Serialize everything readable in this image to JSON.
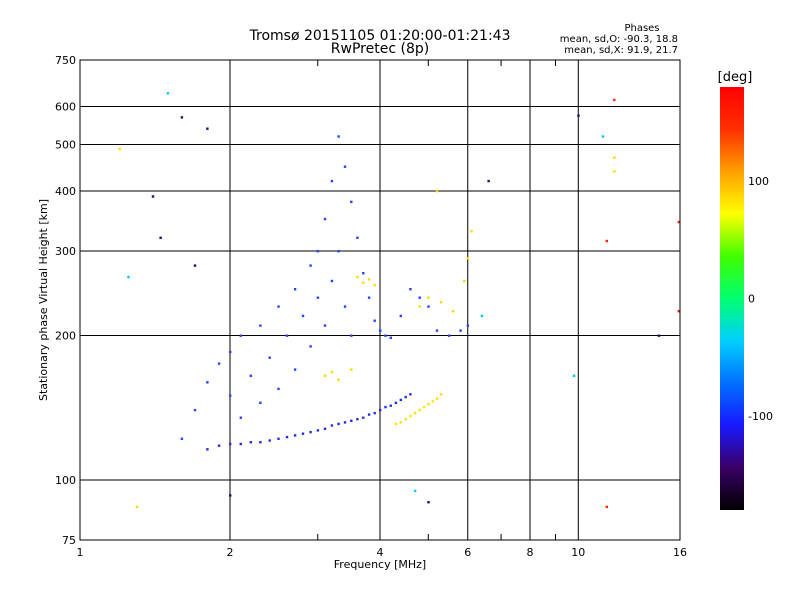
{
  "chart_data": {
    "type": "scatter",
    "title": "Tromsø 20151105 01:20:00-01:21:43",
    "subtitle": "RwPretec (8p)",
    "xlabel": "Frequency [MHz]",
    "ylabel": "Stationary phase Virtual Height [km]",
    "x_scale": "log",
    "y_scale": "log",
    "xlim": [
      1,
      16
    ],
    "ylim": [
      75,
      750
    ],
    "x_ticks": [
      1,
      2,
      4,
      6,
      8,
      10,
      16
    ],
    "x_minor_ticks": [
      3,
      5,
      7,
      9
    ],
    "y_ticks": [
      75,
      100,
      200,
      300,
      400,
      500,
      600,
      750
    ],
    "grid": true,
    "legend": {
      "title": "Phases",
      "lines": [
        "mean, sd,O:  -90.3, 18.8",
        "mean, sd,X:  91.9, 21.7"
      ],
      "placement": "top-right"
    },
    "colorbar": {
      "label": "[deg]",
      "range": [
        -180,
        180
      ],
      "ticks": [
        100,
        0,
        -100
      ],
      "colors": [
        "#000000",
        "#3b0066",
        "#1818ff",
        "#0070ff",
        "#00d0ff",
        "#00ff70",
        "#40ff00",
        "#ffff00",
        "#ffa000",
        "#ff3000",
        "#ff0000"
      ]
    },
    "series": [
      {
        "color": "#2030e0",
        "points": [
          [
            1.8,
            116
          ],
          [
            1.9,
            118
          ],
          [
            2.0,
            119
          ],
          [
            2.1,
            119
          ],
          [
            2.2,
            120
          ],
          [
            2.3,
            120
          ],
          [
            2.4,
            121
          ],
          [
            2.5,
            122
          ],
          [
            2.6,
            123
          ],
          [
            2.7,
            124
          ],
          [
            2.8,
            125
          ],
          [
            2.9,
            126
          ],
          [
            3.0,
            127
          ],
          [
            3.1,
            128
          ],
          [
            3.2,
            130
          ],
          [
            3.3,
            131
          ],
          [
            3.4,
            132
          ],
          [
            3.5,
            133
          ],
          [
            3.6,
            134
          ],
          [
            3.7,
            135
          ],
          [
            3.8,
            137
          ],
          [
            3.9,
            138
          ],
          [
            4.0,
            140
          ],
          [
            4.1,
            142
          ],
          [
            4.2,
            143
          ],
          [
            4.3,
            145
          ],
          [
            4.4,
            147
          ],
          [
            4.5,
            149
          ],
          [
            4.6,
            151
          ]
        ]
      },
      {
        "color": "#ffe000",
        "points": [
          [
            4.3,
            131
          ],
          [
            4.4,
            132
          ],
          [
            4.5,
            134
          ],
          [
            4.6,
            136
          ],
          [
            4.7,
            138
          ],
          [
            4.8,
            140
          ],
          [
            4.9,
            142
          ],
          [
            5.0,
            144
          ],
          [
            5.1,
            146
          ],
          [
            5.2,
            148
          ],
          [
            5.3,
            151
          ]
        ]
      },
      {
        "color": "#2a40ff",
        "points": [
          [
            1.6,
            122
          ],
          [
            1.7,
            140
          ],
          [
            1.8,
            160
          ],
          [
            1.9,
            175
          ],
          [
            2.0,
            150
          ],
          [
            2.0,
            185
          ],
          [
            2.1,
            135
          ],
          [
            2.1,
            200
          ],
          [
            2.2,
            165
          ],
          [
            2.3,
            210
          ],
          [
            2.3,
            145
          ],
          [
            2.4,
            180
          ],
          [
            2.5,
            230
          ],
          [
            2.5,
            155
          ],
          [
            2.6,
            200
          ],
          [
            2.7,
            250
          ],
          [
            2.7,
            170
          ],
          [
            2.8,
            220
          ],
          [
            2.9,
            280
          ],
          [
            2.9,
            190
          ],
          [
            3.0,
            300
          ],
          [
            3.0,
            240
          ],
          [
            3.1,
            350
          ],
          [
            3.1,
            210
          ],
          [
            3.2,
            420
          ],
          [
            3.2,
            260
          ],
          [
            3.3,
            520
          ],
          [
            3.3,
            300
          ],
          [
            3.4,
            450
          ],
          [
            3.4,
            230
          ],
          [
            3.5,
            380
          ],
          [
            3.5,
            200
          ],
          [
            3.6,
            320
          ],
          [
            3.7,
            270
          ],
          [
            3.8,
            240
          ],
          [
            3.9,
            215
          ],
          [
            4.0,
            205
          ],
          [
            4.1,
            200
          ],
          [
            4.2,
            198
          ],
          [
            4.4,
            220
          ],
          [
            4.6,
            250
          ],
          [
            4.8,
            240
          ],
          [
            5.0,
            230
          ],
          [
            5.2,
            205
          ],
          [
            5.5,
            200
          ],
          [
            5.8,
            205
          ],
          [
            6.0,
            210
          ]
        ]
      },
      {
        "color": "#ffd800",
        "points": [
          [
            3.6,
            265
          ],
          [
            3.7,
            258
          ],
          [
            3.8,
            262
          ],
          [
            3.9,
            255
          ],
          [
            3.1,
            165
          ],
          [
            3.2,
            168
          ],
          [
            3.3,
            162
          ],
          [
            3.5,
            170
          ],
          [
            4.8,
            230
          ],
          [
            5.0,
            240
          ],
          [
            5.3,
            235
          ],
          [
            5.6,
            225
          ],
          [
            5.9,
            260
          ],
          [
            6.0,
            290
          ],
          [
            6.1,
            330
          ],
          [
            5.2,
            400
          ],
          [
            11.8,
            440
          ],
          [
            11.8,
            470
          ],
          [
            1.2,
            490
          ],
          [
            1.3,
            88
          ]
        ]
      },
      {
        "color": "#ff2000",
        "points": [
          [
            11.4,
            315
          ],
          [
            11.4,
            88
          ],
          [
            11.8,
            620
          ],
          [
            15.9,
            345
          ],
          [
            15.9,
            225
          ]
        ]
      },
      {
        "color": "#00c8ff",
        "points": [
          [
            1.5,
            640
          ],
          [
            1.25,
            265
          ],
          [
            6.4,
            220
          ],
          [
            9.8,
            165
          ],
          [
            11.2,
            520
          ],
          [
            4.7,
            95
          ]
        ]
      },
      {
        "color": "#3a0070",
        "points": [
          [
            1.6,
            570
          ],
          [
            1.8,
            540
          ],
          [
            1.4,
            390
          ],
          [
            1.45,
            320
          ],
          [
            1.7,
            280
          ],
          [
            2.0,
            93
          ],
          [
            10.0,
            575
          ],
          [
            14.5,
            200
          ],
          [
            5.0,
            90
          ],
          [
            6.6,
            420
          ]
        ]
      }
    ]
  }
}
